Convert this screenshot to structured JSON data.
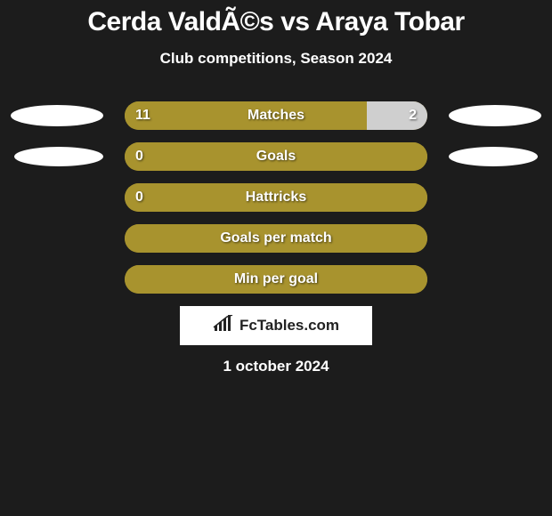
{
  "title": "Cerda ValdÃ©s vs Araya Tobar",
  "subtitle": "Club competitions, Season 2024",
  "brand": "FcTables.com",
  "date": "1 october 2024",
  "colors": {
    "background": "#1c1c1c",
    "bar_primary": "#a8932e",
    "bar_secondary": "#cfcfcf",
    "text": "#ffffff",
    "brand_bg": "#ffffff",
    "brand_text": "#222222"
  },
  "stats": [
    {
      "label": "Matches",
      "left_value": "11",
      "right_value": "2",
      "left_pct": 80,
      "right_pct": 20,
      "show_left_ellipse": true,
      "show_right_ellipse": true
    },
    {
      "label": "Goals",
      "left_value": "0",
      "right_value": "",
      "left_pct": 100,
      "right_pct": 0,
      "show_left_ellipse": true,
      "show_right_ellipse": true
    },
    {
      "label": "Hattricks",
      "left_value": "0",
      "right_value": "",
      "left_pct": 100,
      "right_pct": 0,
      "show_left_ellipse": false,
      "show_right_ellipse": false
    },
    {
      "label": "Goals per match",
      "left_value": "",
      "right_value": "",
      "left_pct": 100,
      "right_pct": 0,
      "show_left_ellipse": false,
      "show_right_ellipse": false
    },
    {
      "label": "Min per goal",
      "left_value": "",
      "right_value": "",
      "left_pct": 100,
      "right_pct": 0,
      "show_left_ellipse": false,
      "show_right_ellipse": false
    }
  ]
}
